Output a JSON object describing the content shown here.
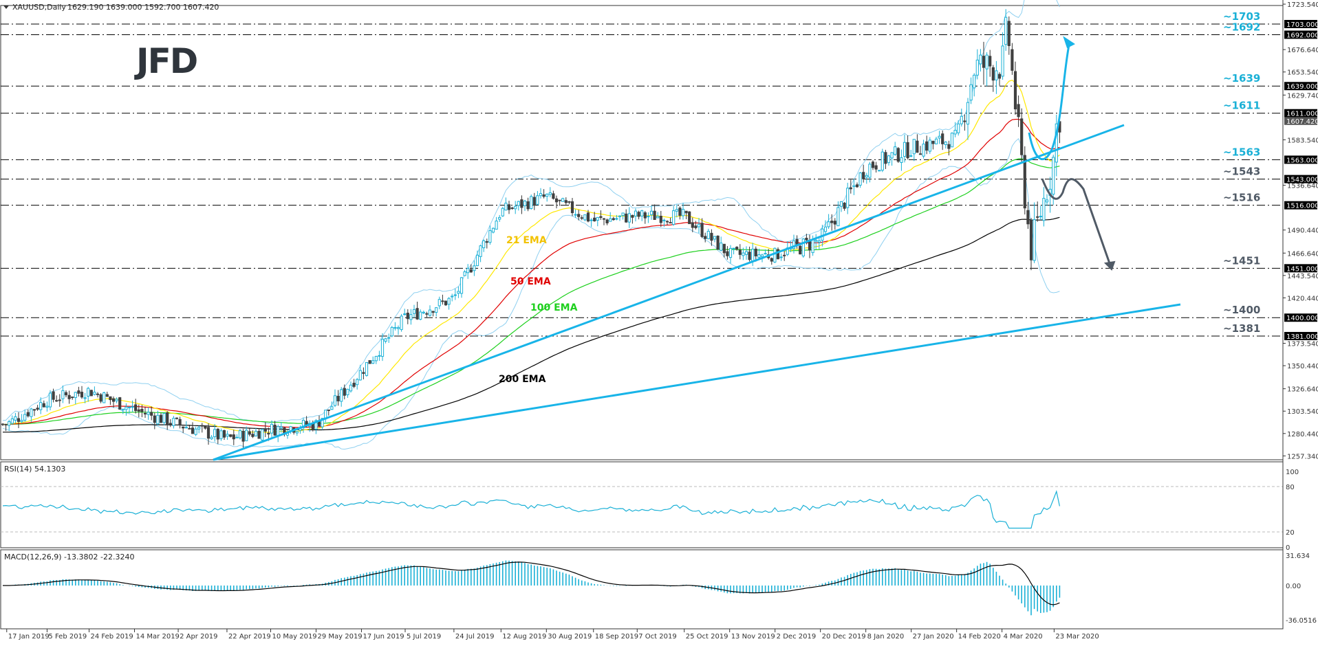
{
  "header": {
    "symbol": "XAUUSD,Daily",
    "ohlc": "1629.190 1639.000 1592.700 1607.420"
  },
  "logo": {
    "text": "JFD"
  },
  "colors": {
    "bull_candle": "#1ab0d6",
    "bear_candle": "#404040",
    "ema21": "#ffe800",
    "ema50": "#e00000",
    "ema100": "#1ed01e",
    "ema200": "#000000",
    "bollinger": "#8fd0f0",
    "trendline": "#18b4e8",
    "label_blue": "#1ab0d6",
    "label_grey": "#505a66",
    "rsi_line": "#1ab0d6",
    "macd_hist": "#1ab0d6",
    "macd_signal": "#000000"
  },
  "chart_data": [
    {
      "type": "candlestick",
      "title": "XAUUSD,Daily",
      "subtitle": "1629.190 1639.000 1592.700 1607.420",
      "x_tick_labels": [
        "17 Jan 2019",
        "5 Feb 2019",
        "24 Feb 2019",
        "14 Mar 2019",
        "2 Apr 2019",
        "22 Apr 2019",
        "10 May 2019",
        "29 May 2019",
        "17 Jun 2019",
        "5 Jul 2019",
        "24 Jul 2019",
        "12 Aug 2019",
        "30 Aug 2019",
        "18 Sep 2019",
        "7 Oct 2019",
        "25 Oct 2019",
        "13 Nov 2019",
        "2 Dec 2019",
        "20 Dec 2019",
        "8 Jan 2020",
        "27 Jan 2020",
        "14 Feb 2020",
        "4 Mar 2020",
        "23 Mar 2020"
      ],
      "y_tick_labels": [
        "1723.540",
        "1676.640",
        "1653.540",
        "1629.740",
        "1583.540",
        "1536.640",
        "1490.440",
        "1466.640",
        "1443.540",
        "1420.440",
        "1373.540",
        "1350.440",
        "1326.640",
        "1303.540",
        "1280.440",
        "1257.340"
      ],
      "ylim": [
        1257.34,
        1723.54
      ],
      "approx_close_path": [
        {
          "date": "17 Jan 2019",
          "close": 1290
        },
        {
          "date": "5 Feb 2019",
          "close": 1315
        },
        {
          "date": "24 Feb 2019",
          "close": 1325
        },
        {
          "date": "14 Mar 2019",
          "close": 1305
        },
        {
          "date": "2 Apr 2019",
          "close": 1290
        },
        {
          "date": "22 Apr 2019",
          "close": 1275
        },
        {
          "date": "10 May 2019",
          "close": 1285
        },
        {
          "date": "29 May 2019",
          "close": 1290
        },
        {
          "date": "17 Jun 2019",
          "close": 1345
        },
        {
          "date": "5 Jul 2019",
          "close": 1400
        },
        {
          "date": "24 Jul 2019",
          "close": 1420
        },
        {
          "date": "12 Aug 2019",
          "close": 1510
        },
        {
          "date": "30 Aug 2019",
          "close": 1525
        },
        {
          "date": "18 Sep 2019",
          "close": 1500
        },
        {
          "date": "7 Oct 2019",
          "close": 1505
        },
        {
          "date": "25 Oct 2019",
          "close": 1505
        },
        {
          "date": "13 Nov 2019",
          "close": 1465
        },
        {
          "date": "2 Dec 2019",
          "close": 1465
        },
        {
          "date": "20 Dec 2019",
          "close": 1480
        },
        {
          "date": "8 Jan 2020",
          "close": 1555
        },
        {
          "date": "27 Jan 2020",
          "close": 1575
        },
        {
          "date": "14 Feb 2020",
          "close": 1585
        },
        {
          "date": "24 Feb 2020",
          "close": 1660
        },
        {
          "date": "4 Mar 2020",
          "close": 1660
        },
        {
          "date": "9 Mar 2020",
          "close": 1703
        },
        {
          "date": "19 Mar 2020",
          "close": 1470
        },
        {
          "date": "23 Mar 2020",
          "close": 1555
        },
        {
          "date": "24 Mar 2020",
          "close": 1607.42
        }
      ],
      "horizontal_levels": [
        {
          "value": 1703,
          "label": "~1703",
          "tag": "1703.000",
          "color": "blue"
        },
        {
          "value": 1692,
          "label": "~1692",
          "tag": "1692.000",
          "color": "blue"
        },
        {
          "value": 1639,
          "label": "~1639",
          "tag": "1639.000",
          "color": "blue"
        },
        {
          "value": 1611,
          "label": "~1611",
          "tag": "1611.000",
          "color": "blue"
        },
        {
          "value": 1563,
          "label": "~1563",
          "tag": "1563.000",
          "color": "blue"
        },
        {
          "value": 1543,
          "label": "~1543",
          "tag": "1543.000",
          "color": "grey"
        },
        {
          "value": 1516,
          "label": "~1516",
          "tag": "1516.000",
          "color": "grey"
        },
        {
          "value": 1451,
          "label": "~1451",
          "tag": "1451.000",
          "color": "grey"
        },
        {
          "value": 1400,
          "label": "~1400",
          "tag": "1400.000",
          "color": "grey"
        },
        {
          "value": 1381,
          "label": "~1381",
          "tag": "1381.000",
          "color": "grey"
        }
      ],
      "current_price_tag": "1607.420",
      "series_labels": [
        "21 EMA",
        "50 EMA",
        "100 EMA",
        "200 EMA"
      ],
      "annotations": [
        "bullish scenario arrow toward ~1692",
        "bearish scenario arrow toward ~1451",
        "uptrend line from May 2019",
        "long-term uptrend line"
      ]
    },
    {
      "type": "line",
      "title": "RSI(14) 54.1303",
      "ylim": [
        0,
        100
      ],
      "y_tick_labels": [
        "100",
        "80",
        "20",
        "0"
      ],
      "levels": [
        80,
        20
      ],
      "last_value": 54.1303
    },
    {
      "type": "bar",
      "title": "MACD(12,26,9) -13.3802 -22.3240",
      "ylim": [
        -36.0516,
        31.634
      ],
      "y_tick_labels": [
        "31.634",
        "0.00",
        "-36.0516"
      ],
      "series": [
        {
          "name": "MACD histogram",
          "last_value": -13.3802
        },
        {
          "name": "Signal",
          "last_value": -22.324
        }
      ]
    }
  ],
  "ema_labels": {
    "ema21": "21 EMA",
    "ema50": "50 EMA",
    "ema100": "100 EMA",
    "ema200": "200 EMA"
  },
  "price_axis": {
    "ticks": [
      "1723.540",
      "1676.640",
      "1653.540",
      "1629.740",
      "1583.540",
      "1536.640",
      "1490.440",
      "1466.640",
      "1443.540",
      "1420.440",
      "1373.540",
      "1350.440",
      "1326.640",
      "1303.540",
      "1280.440",
      "1257.340"
    ]
  },
  "levels": [
    {
      "label": "~1703",
      "tag": "1703.000"
    },
    {
      "label": "~1692",
      "tag": "1692.000"
    },
    {
      "label": "~1639",
      "tag": "1639.000"
    },
    {
      "label": "~1611",
      "tag": "1611.000"
    },
    {
      "label": "~1563",
      "tag": "1563.000"
    },
    {
      "label": "~1543",
      "tag": "1543.000"
    },
    {
      "label": "~1516",
      "tag": "1516.000"
    },
    {
      "label": "~1451",
      "tag": "1451.000"
    },
    {
      "label": "~1400",
      "tag": "1400.000"
    },
    {
      "label": "~1381",
      "tag": "1381.000"
    }
  ],
  "current_price": "1607.420",
  "rsi": {
    "title": "RSI(14) 54.1303",
    "ticks": [
      "100",
      "80",
      "20",
      "0"
    ]
  },
  "macd": {
    "title": "MACD(12,26,9) -13.3802 -22.3240",
    "ticks": [
      "31.634",
      "0.00",
      "-36.0516"
    ]
  },
  "date_axis": [
    "17 Jan 2019",
    "5 Feb 2019",
    "24 Feb 2019",
    "14 Mar 2019",
    "2 Apr 2019",
    "22 Apr 2019",
    "10 May 2019",
    "29 May 2019",
    "17 Jun 2019",
    "5 Jul 2019",
    "24 Jul 2019",
    "12 Aug 2019",
    "30 Aug 2019",
    "18 Sep 2019",
    "7 Oct 2019",
    "25 Oct 2019",
    "13 Nov 2019",
    "2 Dec 2019",
    "20 Dec 2019",
    "8 Jan 2020",
    "27 Jan 2020",
    "14 Feb 2020",
    "4 Mar 2020",
    "23 Mar 2020"
  ]
}
